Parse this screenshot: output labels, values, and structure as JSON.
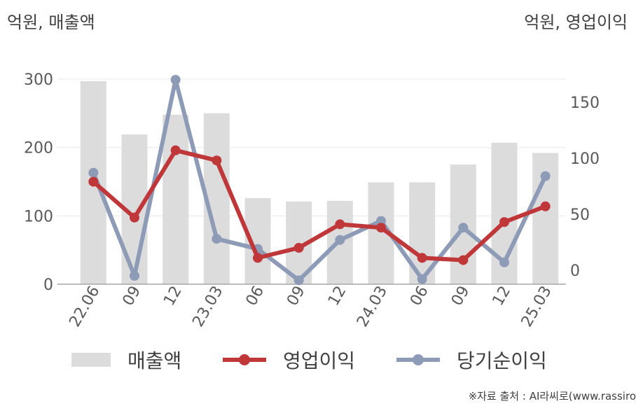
{
  "units": {
    "left": "억원, 매출액",
    "right": "억원, 영업이익"
  },
  "source": "※자료 출처 : AI라씨로(www.rassiro",
  "colors": {
    "revenue": "#dcdcdc",
    "operating_profit": "#c0373a",
    "net_profit": "#8e9bb7",
    "grid": "#e8e8e8",
    "axis": "#a6a6a6"
  },
  "chart_data": {
    "type": "bar",
    "categories": [
      "22.06",
      "09",
      "12",
      "23.03",
      "06",
      "09",
      "12",
      "24.03",
      "06",
      "09",
      "12",
      "25.03"
    ],
    "left_axis": {
      "ylim": [
        0,
        300
      ],
      "ticks": [
        "0",
        "100",
        "200",
        "300"
      ]
    },
    "right_axis": {
      "ylim": [
        -10,
        170
      ],
      "ticks": [
        "0",
        "50",
        "100",
        "150"
      ]
    },
    "series": [
      {
        "name": "매출액",
        "type": "bar",
        "axis": "left",
        "values": [
          297,
          219,
          248,
          250,
          126,
          121,
          122,
          149,
          149,
          175,
          207,
          192
        ]
      },
      {
        "name": "영업이익",
        "type": "line",
        "axis": "right",
        "values": [
          79,
          47,
          107,
          98,
          11,
          20,
          41,
          38,
          11,
          9,
          43,
          57
        ]
      },
      {
        "name": "당기순이익",
        "type": "line",
        "axis": "right",
        "values": [
          87,
          -5,
          170,
          28,
          19,
          -9,
          27,
          44,
          -8,
          38,
          7,
          84
        ]
      }
    ]
  }
}
